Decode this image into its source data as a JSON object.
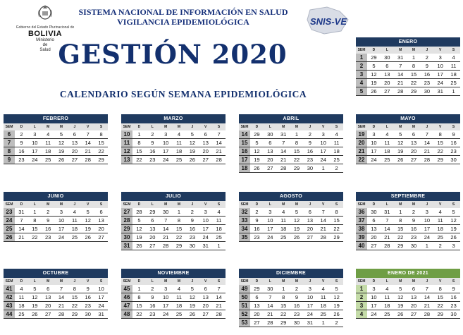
{
  "header": {
    "line1": "SISTEMA NACIONAL DE INFORMACIÓN EN SALUD",
    "line2": "VIGILANCIA EPIDEMIOLÓGICA",
    "title": "GESTIÓN 2020",
    "subtitle": "CALENDARIO SEGÚN SEMANA EPIDEMIOLÓGICA"
  },
  "logo": {
    "gov": "Gobierno del Estado Plurinacional de",
    "country": "BOLIVIA",
    "ministerio_1": "Ministerio",
    "ministerio_2": "de",
    "ministerio_3": "Salud",
    "snis": "SNIS-VE"
  },
  "day_headers": [
    "SEM",
    "D",
    "L",
    "M",
    "M",
    "J",
    "V",
    "S"
  ],
  "months": [
    {
      "name": "ENERO",
      "weeks": [
        [
          1,
          29,
          30,
          31,
          1,
          2,
          3,
          4
        ],
        [
          2,
          5,
          6,
          7,
          8,
          9,
          10,
          11
        ],
        [
          3,
          12,
          13,
          14,
          15,
          16,
          17,
          18
        ],
        [
          4,
          19,
          20,
          21,
          22,
          23,
          24,
          25
        ],
        [
          5,
          26,
          27,
          28,
          29,
          30,
          31,
          1
        ]
      ]
    },
    {
      "name": "FEBRERO",
      "weeks": [
        [
          6,
          2,
          3,
          4,
          5,
          6,
          7,
          8
        ],
        [
          7,
          9,
          10,
          11,
          12,
          13,
          14,
          15
        ],
        [
          8,
          16,
          17,
          18,
          19,
          20,
          21,
          22
        ],
        [
          9,
          23,
          24,
          25,
          26,
          27,
          28,
          29
        ]
      ]
    },
    {
      "name": "MARZO",
      "weeks": [
        [
          10,
          1,
          2,
          3,
          4,
          5,
          6,
          7
        ],
        [
          11,
          8,
          9,
          10,
          11,
          12,
          13,
          14
        ],
        [
          12,
          15,
          16,
          17,
          18,
          19,
          20,
          21
        ],
        [
          13,
          22,
          23,
          24,
          25,
          26,
          27,
          28
        ]
      ]
    },
    {
      "name": "ABRIL",
      "weeks": [
        [
          14,
          29,
          30,
          31,
          1,
          2,
          3,
          4
        ],
        [
          15,
          5,
          6,
          7,
          8,
          9,
          10,
          11
        ],
        [
          16,
          12,
          13,
          14,
          15,
          16,
          17,
          18
        ],
        [
          17,
          19,
          20,
          21,
          22,
          23,
          24,
          25
        ],
        [
          18,
          26,
          27,
          28,
          29,
          30,
          1,
          2
        ]
      ]
    },
    {
      "name": "MAYO",
      "weeks": [
        [
          19,
          3,
          4,
          5,
          6,
          7,
          8,
          9
        ],
        [
          20,
          10,
          11,
          12,
          13,
          14,
          15,
          16
        ],
        [
          21,
          17,
          18,
          19,
          20,
          21,
          22,
          23
        ],
        [
          22,
          24,
          25,
          26,
          27,
          28,
          29,
          30
        ]
      ]
    },
    {
      "name": "JUNIO",
      "weeks": [
        [
          23,
          31,
          1,
          2,
          3,
          4,
          5,
          6
        ],
        [
          24,
          7,
          8,
          9,
          10,
          11,
          12,
          13
        ],
        [
          25,
          14,
          15,
          16,
          17,
          18,
          19,
          20
        ],
        [
          26,
          21,
          22,
          23,
          24,
          25,
          26,
          27
        ]
      ]
    },
    {
      "name": "JULIO",
      "weeks": [
        [
          27,
          28,
          29,
          30,
          1,
          2,
          3,
          4
        ],
        [
          28,
          5,
          6,
          7,
          8,
          9,
          10,
          11
        ],
        [
          29,
          12,
          13,
          14,
          15,
          16,
          17,
          18
        ],
        [
          30,
          19,
          20,
          21,
          22,
          23,
          24,
          25
        ],
        [
          31,
          26,
          27,
          28,
          29,
          30,
          31,
          1
        ]
      ]
    },
    {
      "name": "AGOSTO",
      "weeks": [
        [
          32,
          2,
          3,
          4,
          5,
          6,
          7,
          8
        ],
        [
          33,
          9,
          10,
          11,
          12,
          13,
          14,
          15
        ],
        [
          34,
          16,
          17,
          18,
          19,
          20,
          21,
          22
        ],
        [
          35,
          23,
          24,
          25,
          26,
          27,
          28,
          29
        ]
      ]
    },
    {
      "name": "SEPTIEMBRE",
      "weeks": [
        [
          36,
          30,
          31,
          1,
          2,
          3,
          4,
          5
        ],
        [
          37,
          6,
          7,
          8,
          9,
          10,
          11,
          12
        ],
        [
          38,
          13,
          14,
          15,
          16,
          17,
          18,
          19
        ],
        [
          39,
          20,
          21,
          22,
          23,
          24,
          25,
          26
        ],
        [
          40,
          27,
          28,
          29,
          30,
          1,
          2,
          3
        ]
      ]
    },
    {
      "name": "OCTUBRE",
      "weeks": [
        [
          41,
          4,
          5,
          6,
          7,
          8,
          9,
          10
        ],
        [
          42,
          11,
          12,
          13,
          14,
          15,
          16,
          17
        ],
        [
          43,
          18,
          19,
          20,
          21,
          22,
          23,
          24
        ],
        [
          44,
          25,
          26,
          27,
          28,
          29,
          30,
          31
        ]
      ]
    },
    {
      "name": "NOVIEMBRE",
      "weeks": [
        [
          45,
          1,
          2,
          3,
          4,
          5,
          6,
          7
        ],
        [
          46,
          8,
          9,
          10,
          11,
          12,
          13,
          14
        ],
        [
          47,
          15,
          16,
          17,
          18,
          19,
          20,
          21
        ],
        [
          48,
          22,
          23,
          24,
          25,
          26,
          27,
          28
        ]
      ]
    },
    {
      "name": "DICIEMBRE",
      "weeks": [
        [
          49,
          29,
          30,
          1,
          2,
          3,
          4,
          5
        ],
        [
          50,
          6,
          7,
          8,
          9,
          10,
          11,
          12
        ],
        [
          51,
          13,
          14,
          15,
          16,
          17,
          18,
          19
        ],
        [
          52,
          20,
          21,
          22,
          23,
          24,
          25,
          26
        ],
        [
          53,
          27,
          28,
          29,
          30,
          31,
          1,
          2
        ]
      ]
    },
    {
      "name": "ENERO DE 2021",
      "highlight": "green",
      "weeks": [
        [
          1,
          3,
          4,
          5,
          6,
          7,
          8,
          9
        ],
        [
          2,
          10,
          11,
          12,
          13,
          14,
          15,
          16
        ],
        [
          3,
          17,
          18,
          19,
          20,
          21,
          22,
          23
        ],
        [
          4,
          24,
          25,
          26,
          27,
          28,
          29,
          30
        ]
      ]
    }
  ],
  "colors": {
    "month_header": "#1f3a5f",
    "title": "#13306e",
    "highlight_header": "#6f9e45",
    "highlight_week": "#c4dba8"
  }
}
